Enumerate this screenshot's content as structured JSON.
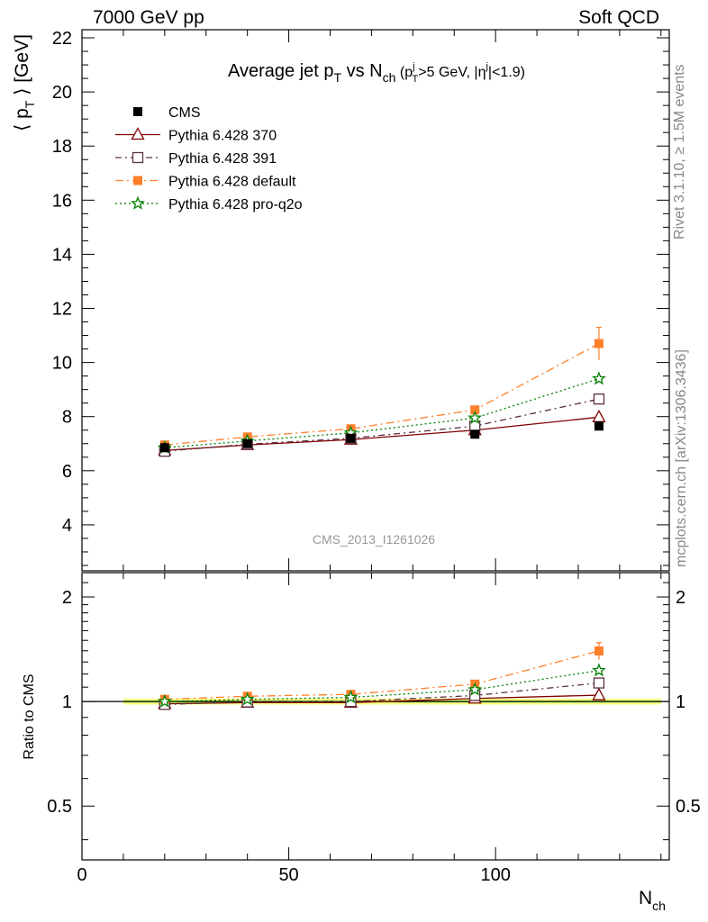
{
  "header": {
    "left": "7000 GeV pp",
    "right": "Soft QCD"
  },
  "side_labels": {
    "rivet": "Rivet 3.1.10, ≥ 1.5M events",
    "mcplots": "mcplots.cern.ch [arXiv:1306.3436]"
  },
  "watermark": "CMS_2013_I1261026",
  "chart_data": {
    "type": "line",
    "title": "Average jet p_T vs N_ch (p_T^j>5 GeV, |η^j|<1.9)",
    "xlabel": "N_ch",
    "ylabel": "⟨ p_T ⟩ [GeV]",
    "ratio_ylabel": "Ratio to CMS",
    "xlim": [
      0,
      142
    ],
    "ylim": [
      2.3,
      22.3
    ],
    "ratio_ylim": [
      0.35,
      2.35
    ],
    "ratio_scale": "log",
    "x_ticks": [
      0,
      50,
      100
    ],
    "y_ticks": [
      4,
      6,
      8,
      10,
      12,
      14,
      16,
      18,
      20,
      22
    ],
    "ratio_ticks": [
      0.5,
      1,
      2
    ],
    "ratio_tick_labels": [
      "0.5",
      "1",
      "2"
    ],
    "legend_position": "top-left",
    "x": [
      20,
      40,
      65,
      95,
      125
    ],
    "reference_band_x": [
      10,
      140
    ],
    "series": [
      {
        "name": "CMS",
        "color": "#000000",
        "marker": "filled-square",
        "dash": "",
        "values": [
          6.85,
          7.0,
          7.2,
          7.35,
          7.65
        ],
        "errors": [
          0.05,
          0.05,
          0.05,
          0.08,
          0.1
        ]
      },
      {
        "name": "Pythia 6.428 370",
        "color": "#800000",
        "marker": "open-triangle",
        "dash": "",
        "values": [
          6.75,
          6.95,
          7.15,
          7.5,
          7.98
        ],
        "errors": [
          0,
          0,
          0,
          0,
          0.05
        ]
      },
      {
        "name": "Pythia 6.428 391",
        "color": "#5c3040",
        "marker": "open-square",
        "dash": "7,4,2,4",
        "values": [
          6.72,
          6.98,
          7.2,
          7.65,
          8.65
        ],
        "errors": [
          0,
          0,
          0,
          0,
          0.08
        ]
      },
      {
        "name": "Pythia 6.428 default",
        "color": "#ff7f2a",
        "marker": "filled-square",
        "dash": "9,4,2,4",
        "values": [
          6.95,
          7.25,
          7.55,
          8.25,
          10.7
        ],
        "errors": [
          0.05,
          0.05,
          0.05,
          0.08,
          0.6
        ]
      },
      {
        "name": "Pythia 6.428 pro-q2o",
        "color": "#008000",
        "marker": "open-star",
        "dash": "2,3",
        "values": [
          6.85,
          7.1,
          7.4,
          7.95,
          9.4
        ],
        "errors": [
          0,
          0,
          0,
          0,
          0.2
        ]
      }
    ]
  }
}
